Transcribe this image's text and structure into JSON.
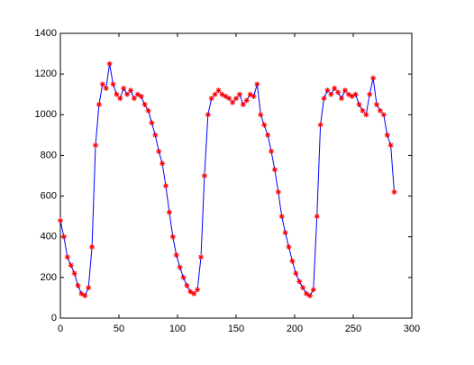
{
  "chart_data": {
    "type": "line",
    "x": [
      0,
      3,
      6,
      9,
      12,
      15,
      18,
      21,
      24,
      27,
      30,
      33,
      36,
      39,
      42,
      45,
      48,
      51,
      54,
      57,
      60,
      63,
      66,
      69,
      72,
      75,
      78,
      81,
      84,
      87,
      90,
      93,
      96,
      99,
      102,
      105,
      108,
      111,
      114,
      117,
      120,
      123,
      126,
      129,
      132,
      135,
      138,
      141,
      144,
      147,
      150,
      153,
      156,
      159,
      162,
      165,
      168,
      171,
      174,
      177,
      180,
      183,
      186,
      189,
      192,
      195,
      198,
      201,
      204,
      207,
      210,
      213,
      216,
      219,
      222,
      225,
      228,
      231,
      234,
      237,
      240,
      243,
      246,
      249,
      252,
      255,
      258,
      261,
      264,
      267,
      270,
      273,
      276,
      279,
      282,
      285
    ],
    "series": [
      {
        "color": "#0000ff",
        "marker_color": "#ff0000",
        "marker": "*",
        "values": [
          480,
          400,
          300,
          260,
          220,
          160,
          120,
          110,
          150,
          350,
          850,
          1050,
          1150,
          1130,
          1250,
          1150,
          1100,
          1080,
          1130,
          1100,
          1120,
          1080,
          1100,
          1090,
          1050,
          1020,
          960,
          900,
          820,
          760,
          650,
          520,
          400,
          310,
          250,
          200,
          160,
          130,
          120,
          140,
          300,
          700,
          1000,
          1080,
          1100,
          1120,
          1100,
          1090,
          1080,
          1060,
          1080,
          1100,
          1050,
          1070,
          1100,
          1090,
          1150,
          1000,
          950,
          900,
          820,
          730,
          620,
          500,
          420,
          350,
          280,
          220,
          180,
          150,
          120,
          110,
          140,
          500,
          950,
          1080,
          1120,
          1100,
          1130,
          1110,
          1080,
          1120,
          1100,
          1090,
          1100,
          1050,
          1020,
          1000,
          1100,
          1180,
          1050,
          1020,
          1000,
          900,
          850,
          620
        ]
      }
    ],
    "xlim": [
      0,
      300
    ],
    "xticks": [
      0,
      50,
      100,
      150,
      200,
      250,
      300
    ],
    "ylim": [
      0,
      1400
    ],
    "yticks": [
      0,
      200,
      400,
      600,
      800,
      1000,
      1200,
      1400
    ],
    "grid": false
  }
}
